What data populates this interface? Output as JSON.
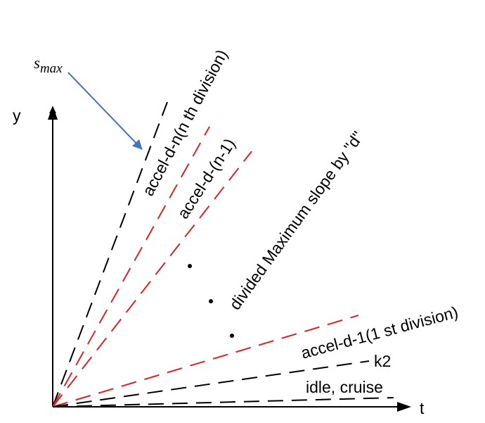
{
  "symbol": {
    "base": "s",
    "subscript": "max"
  },
  "axes": {
    "y": "y",
    "x": "t"
  },
  "lines": {
    "nth": "accel-d-n(n th division)",
    "n_minus_1": "accel-d-(n-1)",
    "first": "accel-d-1(1 st division)",
    "k2": "k2",
    "idle": "idle, cruise"
  },
  "note": "divided Maximum slope by \"d\""
}
